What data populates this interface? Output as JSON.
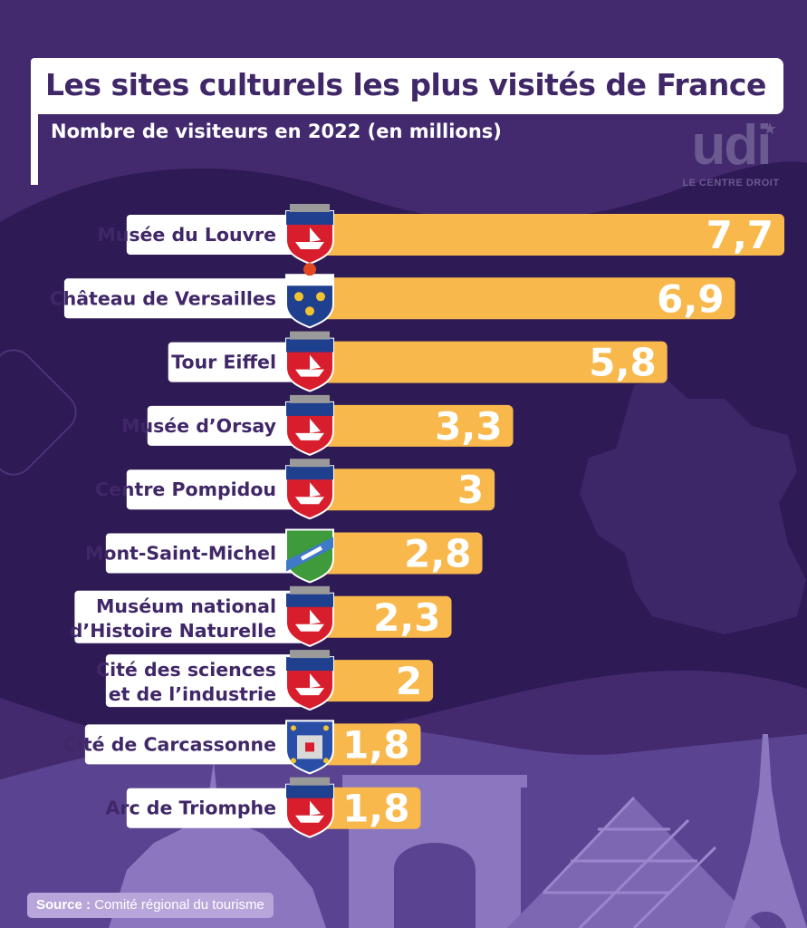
{
  "header": {
    "title": "Les sites culturels les plus visités de France",
    "subtitle": "Nombre de visiteurs en 2022 (en millions)"
  },
  "logo": {
    "word": "udi",
    "tagline": "LE CENTRE DROIT"
  },
  "source": {
    "label": "Source :",
    "text": "Comité régional du tourisme"
  },
  "colors": {
    "background": "#432a6e",
    "bar": "#f8b84b",
    "label_text": "#402768",
    "value_text": "#ffffff",
    "silhouette": "#8b76c0"
  },
  "chart_data": {
    "type": "bar",
    "orientation": "horizontal",
    "title": "Les sites culturels les plus visités de France",
    "subtitle": "Nombre de visiteurs en 2022 (en millions)",
    "xlim": [
      0,
      7.7
    ],
    "grid": false,
    "categories": [
      [
        "Musée du Louvre"
      ],
      [
        "Château de Versailles"
      ],
      [
        "Tour Eiffel"
      ],
      [
        "Musée d’Orsay"
      ],
      [
        "Centre Pompidou"
      ],
      [
        "Mont-Saint-Michel"
      ],
      [
        "Muséum national",
        "d’Histoire Naturelle"
      ],
      [
        "Cité des sciences",
        "et de l’industrie"
      ],
      [
        "Cité de Carcassonne"
      ],
      [
        "Arc de Triomphe"
      ]
    ],
    "values": [
      7.7,
      6.9,
      5.8,
      3.3,
      3,
      2.8,
      2.3,
      2,
      1.8,
      1.8
    ],
    "value_labels": [
      "7,7",
      "6,9",
      "5,8",
      "3,3",
      "3",
      "2,8",
      "2,3",
      "2",
      "1,8",
      "1,8"
    ],
    "crests": [
      "paris-crest-icon",
      "versailles-crest-icon",
      "paris-crest-icon",
      "paris-crest-icon",
      "paris-crest-icon",
      "mont-saint-michel-crest-icon",
      "paris-crest-icon",
      "paris-crest-icon",
      "carcassonne-crest-icon",
      "paris-crest-icon"
    ]
  }
}
